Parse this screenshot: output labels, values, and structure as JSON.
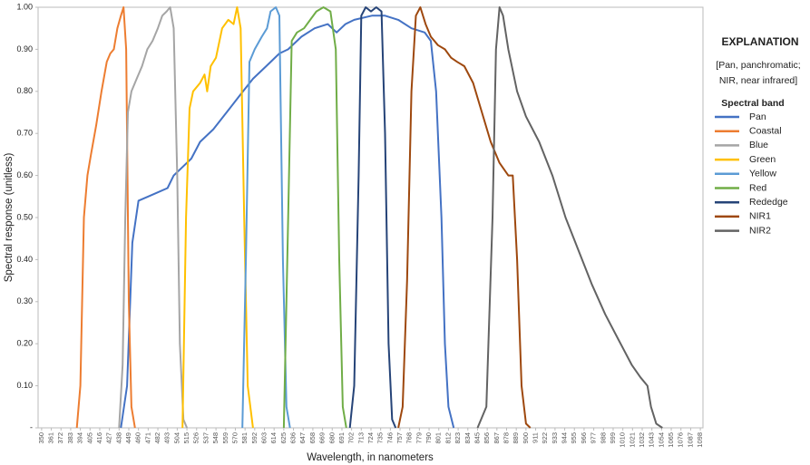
{
  "chart_data": {
    "type": "line",
    "x_label": "Wavelength, in nanometers",
    "y_label": "Spectral response (unitless)",
    "legend_title": "EXPLANATION",
    "legend_note": [
      "[Pan, panchromatic;",
      "NIR, near infrared]"
    ],
    "legend_subtitle": "Spectral band",
    "legend_position": "right",
    "xlim": [
      346,
      1101
    ],
    "ylim": [
      0,
      1
    ],
    "xticks": [
      350,
      361,
      372,
      383,
      394,
      405,
      416,
      427,
      438,
      449,
      460,
      471,
      482,
      493,
      504,
      515,
      526,
      537,
      548,
      559,
      570,
      581,
      592,
      603,
      614,
      625,
      636,
      647,
      658,
      669,
      680,
      691,
      702,
      713,
      724,
      735,
      746,
      757,
      768,
      779,
      790,
      801,
      812,
      823,
      834,
      845,
      856,
      867,
      878,
      889,
      900,
      911,
      922,
      933,
      944,
      955,
      966,
      977,
      988,
      999,
      1010,
      1021,
      1032,
      1043,
      1054,
      1065,
      1076,
      1087,
      1098
    ],
    "yticks": [
      {
        "value": 0,
        "label": "-"
      },
      {
        "value": 0.1,
        "label": "0.10"
      },
      {
        "value": 0.2,
        "label": "0.20"
      },
      {
        "value": 0.3,
        "label": "0.30"
      },
      {
        "value": 0.4,
        "label": "0.40"
      },
      {
        "value": 0.5,
        "label": "0.50"
      },
      {
        "value": 0.6,
        "label": "0.60"
      },
      {
        "value": 0.7,
        "label": "0.70"
      },
      {
        "value": 0.8,
        "label": "0.80"
      },
      {
        "value": 0.9,
        "label": "0.90"
      },
      {
        "value": 1,
        "label": "1.00"
      }
    ],
    "series": [
      {
        "name": "Pan",
        "color": "#4472c4",
        "x": [
          440,
          447,
          453,
          460,
          471,
          482,
          493,
          500,
          510,
          520,
          530,
          545,
          560,
          575,
          590,
          605,
          620,
          630,
          645,
          660,
          675,
          685,
          695,
          705,
          725,
          740,
          755,
          770,
          785,
          792,
          798,
          804,
          808,
          812,
          818
        ],
        "values": [
          0,
          0.1,
          0.44,
          0.54,
          0.55,
          0.56,
          0.57,
          0.6,
          0.62,
          0.64,
          0.68,
          0.71,
          0.75,
          0.79,
          0.83,
          0.86,
          0.89,
          0.9,
          0.93,
          0.95,
          0.96,
          0.94,
          0.96,
          0.97,
          0.98,
          0.98,
          0.97,
          0.95,
          0.94,
          0.92,
          0.8,
          0.5,
          0.2,
          0.05,
          0
        ]
      },
      {
        "name": "Coastal",
        "color": "#ed7d31",
        "x": [
          390,
          394,
          398,
          402,
          406,
          412,
          418,
          424,
          428,
          432,
          436,
          440,
          443,
          446,
          449,
          452,
          456
        ],
        "values": [
          0,
          0.1,
          0.5,
          0.6,
          0.65,
          0.72,
          0.8,
          0.87,
          0.89,
          0.9,
          0.95,
          0.98,
          1,
          0.9,
          0.3,
          0.05,
          0
        ]
      },
      {
        "name": "Blue",
        "color": "#a5a5a5",
        "x": [
          438,
          442,
          445,
          448,
          452,
          458,
          464,
          470,
          476,
          482,
          487,
          492,
          496,
          500,
          504,
          507,
          511,
          515
        ],
        "values": [
          0,
          0.15,
          0.5,
          0.75,
          0.8,
          0.83,
          0.86,
          0.9,
          0.92,
          0.95,
          0.98,
          0.99,
          1,
          0.95,
          0.6,
          0.2,
          0.02,
          0
        ]
      },
      {
        "name": "Green",
        "color": "#ffc000",
        "x": [
          510,
          514,
          518,
          522,
          530,
          535,
          538,
          542,
          548,
          555,
          562,
          568,
          572,
          576,
          580,
          584,
          590
        ],
        "values": [
          0,
          0.5,
          0.76,
          0.8,
          0.82,
          0.84,
          0.8,
          0.86,
          0.88,
          0.95,
          0.97,
          0.96,
          1,
          0.95,
          0.5,
          0.1,
          0
        ]
      },
      {
        "name": "Yellow",
        "color": "#5b9bd5",
        "x": [
          578,
          582,
          586,
          592,
          600,
          606,
          610,
          616,
          620,
          624,
          628,
          632
        ],
        "values": [
          0,
          0.4,
          0.87,
          0.9,
          0.93,
          0.95,
          0.99,
          1,
          0.98,
          0.4,
          0.05,
          0
        ]
      },
      {
        "name": "Red",
        "color": "#70ad47",
        "x": [
          625,
          630,
          634,
          640,
          648,
          655,
          662,
          670,
          678,
          684,
          688,
          692,
          696
        ],
        "values": [
          0,
          0.5,
          0.92,
          0.94,
          0.95,
          0.97,
          0.99,
          1,
          0.99,
          0.9,
          0.4,
          0.05,
          0
        ]
      },
      {
        "name": "Rededge",
        "color": "#264478",
        "x": [
          700,
          705,
          710,
          713,
          718,
          724,
          730,
          736,
          740,
          744,
          748,
          752
        ],
        "values": [
          0,
          0.1,
          0.6,
          0.98,
          1,
          0.99,
          1,
          0.99,
          0.7,
          0.2,
          0.02,
          0
        ]
      },
      {
        "name": "NIR1",
        "color": "#9e480e",
        "x": [
          755,
          760,
          765,
          770,
          775,
          780,
          786,
          792,
          800,
          808,
          815,
          822,
          830,
          840,
          850,
          860,
          870,
          880,
          885,
          890,
          895,
          900,
          905
        ],
        "values": [
          0,
          0.05,
          0.35,
          0.8,
          0.98,
          1,
          0.96,
          0.93,
          0.91,
          0.9,
          0.88,
          0.87,
          0.86,
          0.82,
          0.75,
          0.68,
          0.63,
          0.6,
          0.6,
          0.4,
          0.1,
          0.01,
          0
        ]
      },
      {
        "name": "NIR2",
        "color": "#636363",
        "x": [
          845,
          855,
          862,
          866,
          870,
          874,
          880,
          890,
          900,
          915,
          930,
          945,
          960,
          975,
          990,
          1005,
          1020,
          1030,
          1038,
          1042,
          1048,
          1055
        ],
        "values": [
          0,
          0.05,
          0.5,
          0.9,
          1,
          0.98,
          0.9,
          0.8,
          0.74,
          0.68,
          0.6,
          0.5,
          0.42,
          0.34,
          0.27,
          0.21,
          0.15,
          0.12,
          0.1,
          0.05,
          0.01,
          0
        ]
      }
    ]
  }
}
